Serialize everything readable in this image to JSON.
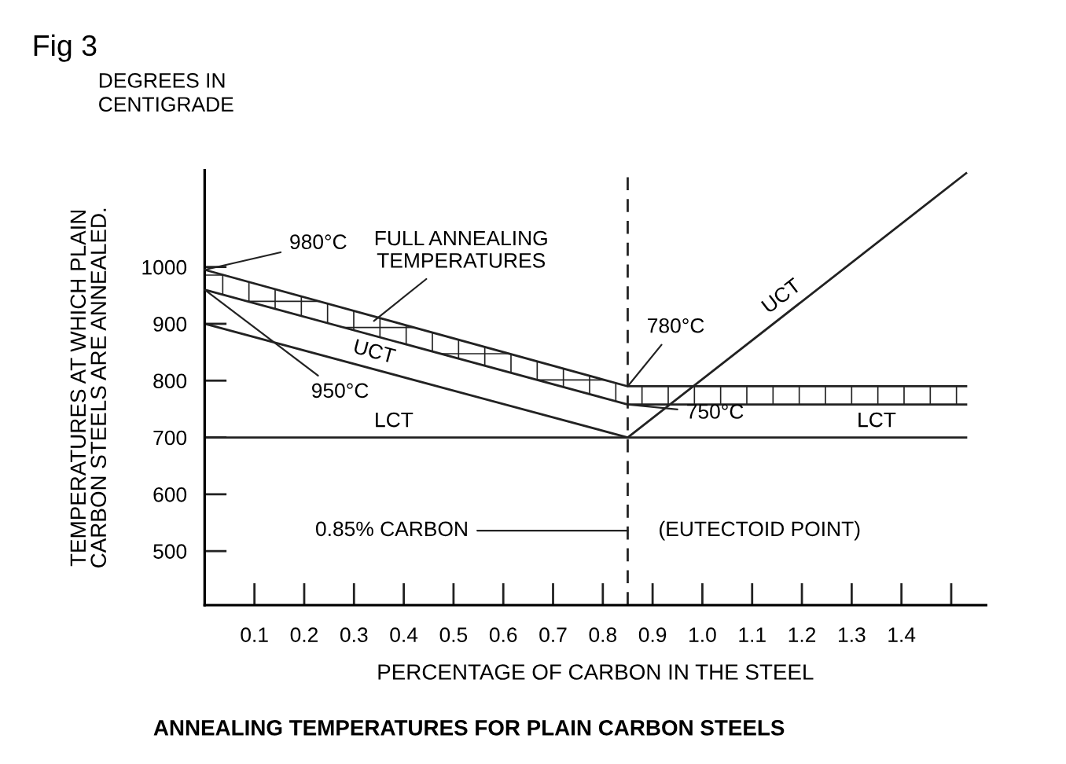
{
  "chart_data": {
    "type": "line",
    "title": "Fig 3",
    "subtitle": "DEGREES IN\nCENTIGRADE",
    "xlabel": "PERCENTAGE OF CARBON IN THE STEEL",
    "ylabel": "TEMPERATURES AT WHICH PLAIN\nCARBON STEELS ARE ANNEALED.",
    "series": [
      {
        "color": "#222222",
        "x": [
          0,
          0.85,
          1.53
        ],
        "values": [
          995,
          790,
          790
        ]
      },
      {
        "color": "#222222",
        "x": [
          0,
          0.85,
          1.53
        ],
        "values": [
          960,
          758,
          758
        ],
        "lower": [
          960,
          758,
          758
        ],
        "upper": [
          995,
          790,
          790
        ]
      },
      {
        "color": "#222222",
        "x": [
          0,
          0.85,
          1.53
        ],
        "values": [
          900,
          700,
          1165
        ]
      },
      {
        "color": "#222222",
        "x": [
          0,
          1.53
        ],
        "values": [
          700,
          700
        ]
      }
    ],
    "ref_lines": [
      {
        "axis": "x",
        "value": 0.85,
        "line_style": "dashed",
        "color": "#222222"
      }
    ],
    "annotations": [
      {
        "text": "980°C",
        "x": 0,
        "y": 995
      },
      {
        "text": "950°C",
        "x": 0,
        "y": 960
      },
      {
        "text": "FULL ANNEALING\nTEMPERATURES",
        "x": 0.34,
        "y": 905
      },
      {
        "text": "780°C",
        "x": 0.85,
        "y": 790
      },
      {
        "text": "750°C",
        "x": 0.85,
        "y": 758
      },
      {
        "text": "0.85% CARBON",
        "x": 0.85,
        "y": 536
      },
      "UCT",
      "UCT",
      "LCT",
      "LCT",
      "(EUTECTOID POINT)",
      "ANNEALING TEMPERATURES FOR PLAIN CARBON STEELS"
    ],
    "xlim": [
      0,
      1.57
    ],
    "ylim": [
      405,
      1170
    ],
    "xticks": [
      0.1,
      0.2,
      0.3,
      0.4,
      0.5,
      0.6,
      0.7,
      0.8,
      0.9,
      {
        "value": 1.0,
        "label": "1.0"
      },
      1.1,
      1.2,
      1.3,
      1.4,
      {
        "value": 1.5,
        "label": null
      }
    ],
    "yticks": [
      500,
      600,
      700,
      800,
      900,
      1000
    ],
    "grid": false,
    "marker": "none",
    "line_style": "solid"
  }
}
